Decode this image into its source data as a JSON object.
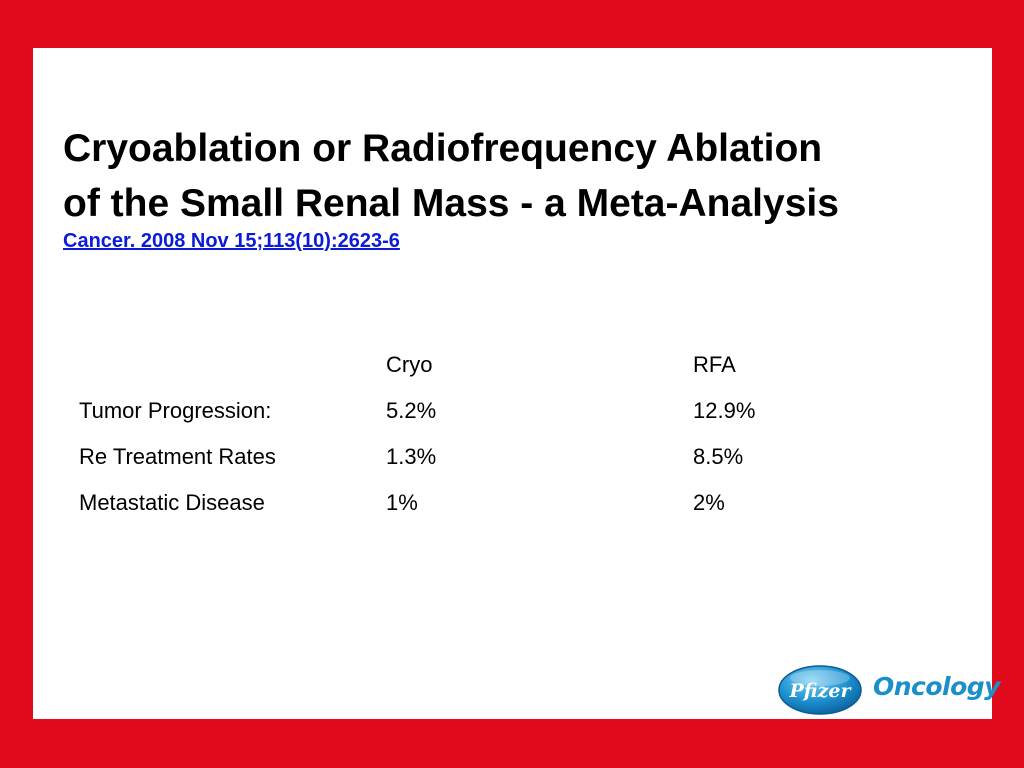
{
  "slide": {
    "title_line1": "Cryoablation or Radiofrequency Ablation",
    "title_line2": "of the Small Renal Mass - a Meta-Analysis",
    "citation": "Cancer. 2008 Nov 15;113(10):2623-6",
    "colors": {
      "frame": "#e10a1a",
      "panel": "#ffffff",
      "link": "#0b1bd6",
      "logo_blue": "#1b8fc9"
    }
  },
  "table": {
    "headers": [
      "",
      "Cryo",
      "RFA"
    ],
    "rows": [
      {
        "label": "Tumor Progression:",
        "cryo": "5.2%",
        "rfa": "12.9%"
      },
      {
        "label": "Re Treatment Rates",
        "cryo": "1.3%",
        "rfa": "8.5%"
      },
      {
        "label": "Metastatic Disease",
        "cryo": "1%",
        "rfa": "2%"
      }
    ]
  },
  "logo": {
    "brand": "Pfizer",
    "division": "Oncology"
  }
}
